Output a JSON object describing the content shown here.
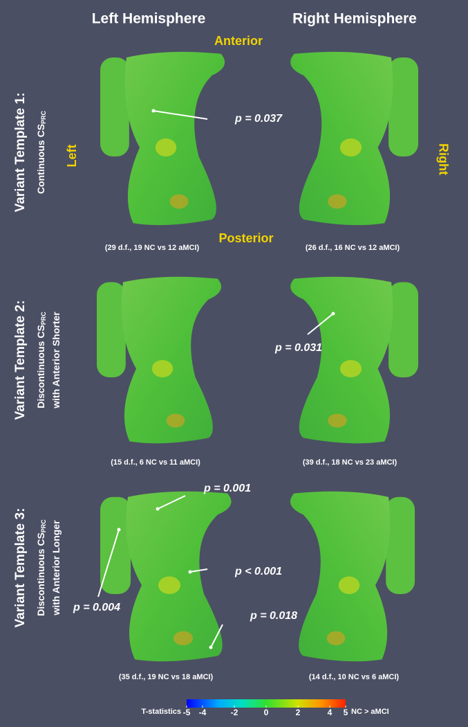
{
  "headers": [
    "Left Hemisphere",
    "Right Hemisphere"
  ],
  "orientation": {
    "anterior": "Anterior",
    "posterior": "Posterior",
    "left": "Left",
    "right": "Right"
  },
  "rows": [
    {
      "title": "Variant Template 1:",
      "lines": [
        {
          "text": "Continuous CS",
          "sub": "PRC"
        }
      ],
      "captions": [
        "(29 d.f., 19 NC vs 12 aMCI)",
        "(26 d.f., 16 NC vs 12 aMCI)"
      ],
      "annotations": [
        "p = 0.037"
      ]
    },
    {
      "title": "Variant Template 2:",
      "lines": [
        {
          "text": "Discontinuous CS",
          "sub": "PRC"
        },
        {
          "text": "with Anterior Shorter"
        }
      ],
      "captions": [
        "(15 d.f., 6 NC vs 11 aMCI)",
        "(39 d.f., 18 NC vs 23 aMCI)"
      ],
      "annotations": [
        "p = 0.031"
      ]
    },
    {
      "title": "Variant Template 3:",
      "lines": [
        {
          "text": "Discontinuous CS",
          "sub": "PRC"
        },
        {
          "text": "with Anterior Longer"
        }
      ],
      "captions": [
        "(35 d.f., 19 NC vs 18 aMCI)",
        "(14 d.f., 10 NC vs 6 aMCI)"
      ],
      "annotations": [
        "p = 0.001",
        "p < 0.001",
        "p = 0.004",
        "p = 0.018"
      ]
    }
  ],
  "colorbar": {
    "label": "T-statistics",
    "right_label": "NC > aMCI",
    "min": -5,
    "max": 5,
    "ticks": [
      -5,
      -4,
      -2,
      0,
      2,
      4,
      5
    ]
  }
}
